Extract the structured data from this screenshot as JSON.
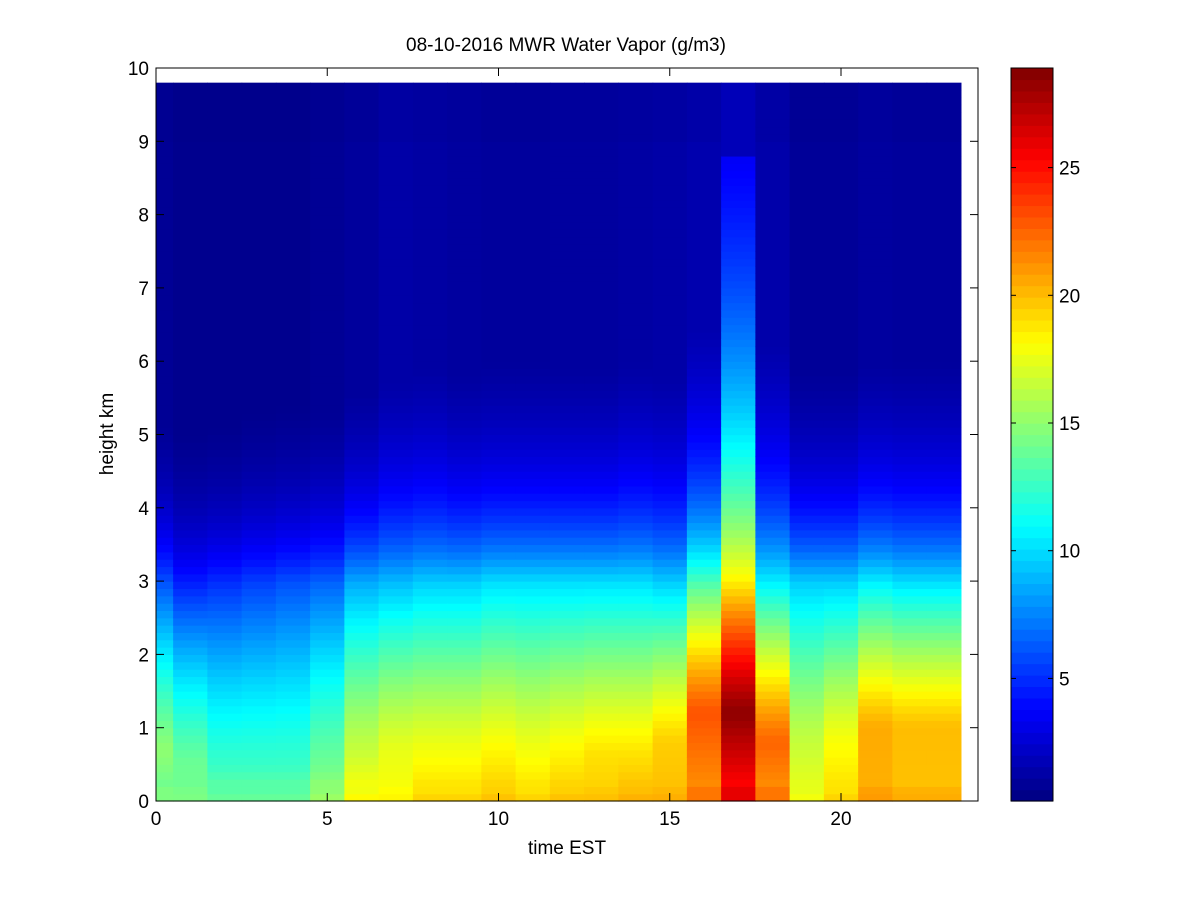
{
  "chart_data": {
    "type": "heatmap",
    "title": "08-10-2016 MWR Water Vapor (g/m3)",
    "xlabel": "time EST",
    "ylabel": "height km",
    "xlim": [
      0,
      24
    ],
    "ylim": [
      0,
      10
    ],
    "xticks": [
      0,
      5,
      10,
      15,
      20
    ],
    "yticks": [
      0,
      1,
      2,
      3,
      4,
      5,
      6,
      7,
      8,
      9,
      10
    ],
    "x_cell_edges": [
      0,
      0.5,
      1.5,
      2.5,
      3.5,
      4.5,
      5.5,
      6.5,
      7.5,
      8.5,
      9.5,
      10.5,
      11.5,
      12.5,
      13.5,
      14.5,
      15.5,
      16.5,
      17.5,
      18.5,
      19.5,
      20.5,
      21.5,
      22.5,
      23.5
    ],
    "y_top": 9.75,
    "y_cell_height": 0.1,
    "colormap": "jet",
    "colorbar": {
      "range": [
        0.2,
        28.9
      ],
      "ticks": [
        5,
        10,
        15,
        20,
        25
      ]
    },
    "columns": [
      {
        "time": 0.25,
        "surface": 14.5,
        "peak": 15.0,
        "peak_height": 0.7,
        "h3": 6.0,
        "scale_high": 1.05,
        "top": 0.8,
        "top_height": 9.0
      },
      {
        "time": 1,
        "surface": 14.5,
        "peak": 14.0,
        "peak_height": 0.5,
        "h3": 4.5,
        "scale_high": 1.0,
        "top": 0.6,
        "top_height": 9.0
      },
      {
        "time": 2,
        "surface": 14.0,
        "peak": 12.5,
        "peak_height": 0.5,
        "h3": 5.0,
        "scale_high": 1.0,
        "top": 0.6,
        "top_height": 9.0
      },
      {
        "time": 3,
        "surface": 14.0,
        "peak": 12.5,
        "peak_height": 0.5,
        "h3": 5.5,
        "scale_high": 1.05,
        "top": 0.6,
        "top_height": 9.0
      },
      {
        "time": 4,
        "surface": 14.0,
        "peak": 12.5,
        "peak_height": 0.5,
        "h3": 6.0,
        "scale_high": 1.05,
        "top": 0.6,
        "top_height": 9.0
      },
      {
        "time": 5,
        "surface": 15.5,
        "peak": 14.0,
        "peak_height": 0.5,
        "h3": 6.5,
        "scale_high": 1.1,
        "top": 0.8,
        "top_height": 9.0
      },
      {
        "time": 6,
        "surface": 18.5,
        "peak": 16.5,
        "peak_height": 0.7,
        "h3": 8.5,
        "scale_high": 1.2,
        "top": 1.0,
        "top_height": 9.0
      },
      {
        "time": 7,
        "surface": 18.5,
        "peak": 17.5,
        "peak_height": 0.7,
        "h3": 9.0,
        "scale_high": 1.4,
        "top": 1.3,
        "top_height": 9.0
      },
      {
        "time": 8,
        "surface": 19.5,
        "peak": 18.0,
        "peak_height": 0.6,
        "h3": 9.5,
        "scale_high": 1.4,
        "top": 1.2,
        "top_height": 9.0
      },
      {
        "time": 9,
        "surface": 19.5,
        "peak": 18.0,
        "peak_height": 0.6,
        "h3": 9.5,
        "scale_high": 1.3,
        "top": 1.1,
        "top_height": 9.0
      },
      {
        "time": 10,
        "surface": 20.0,
        "peak": 18.5,
        "peak_height": 0.6,
        "h3": 10.0,
        "scale_high": 1.3,
        "top": 1.0,
        "top_height": 9.0
      },
      {
        "time": 11,
        "surface": 19.5,
        "peak": 18.0,
        "peak_height": 0.6,
        "h3": 10.0,
        "scale_high": 1.3,
        "top": 1.0,
        "top_height": 9.0
      },
      {
        "time": 12,
        "surface": 20.0,
        "peak": 18.5,
        "peak_height": 0.6,
        "h3": 10.0,
        "scale_high": 1.3,
        "top": 1.1,
        "top_height": 9.0
      },
      {
        "time": 13,
        "surface": 20.0,
        "peak": 19.0,
        "peak_height": 0.6,
        "h3": 10.0,
        "scale_high": 1.3,
        "top": 1.1,
        "top_height": 9.0
      },
      {
        "time": 14,
        "surface": 20.5,
        "peak": 19.0,
        "peak_height": 0.6,
        "h3": 10.0,
        "scale_high": 1.4,
        "top": 1.2,
        "top_height": 9.0
      },
      {
        "time": 15,
        "surface": 20.5,
        "peak": 19.5,
        "peak_height": 0.8,
        "h3": 9.5,
        "scale_high": 1.4,
        "top": 1.3,
        "top_height": 9.0
      },
      {
        "time": 16,
        "surface": 22.0,
        "peak": 23.0,
        "peak_height": 1.2,
        "h3": 13.0,
        "scale_high": 1.6,
        "top": 1.5,
        "top_height": 9.0
      },
      {
        "time": 17,
        "surface": 26.0,
        "peak": 28.5,
        "peak_height": 1.2,
        "h3": 18.5,
        "scale_high": 3.5,
        "top": 2.0,
        "top_height": 8.85
      },
      {
        "time": 18,
        "surface": 22.0,
        "peak": 22.5,
        "peak_height": 0.8,
        "h3": 10.5,
        "scale_high": 1.6,
        "top": 1.4,
        "top_height": 9.0
      },
      {
        "time": 19,
        "surface": 18.0,
        "peak": 16.5,
        "peak_height": 0.8,
        "h3": 9.5,
        "scale_high": 1.2,
        "top": 0.9,
        "top_height": 9.0
      },
      {
        "time": 20,
        "surface": 19.5,
        "peak": 18.0,
        "peak_height": 0.8,
        "h3": 9.5,
        "scale_high": 1.2,
        "top": 0.9,
        "top_height": 9.0
      },
      {
        "time": 21,
        "surface": 21.0,
        "peak": 20.5,
        "peak_height": 1.0,
        "h3": 10.5,
        "scale_high": 1.3,
        "top": 1.1,
        "top_height": 9.0
      },
      {
        "time": 22,
        "surface": 20.5,
        "peak": 20.0,
        "peak_height": 1.0,
        "h3": 10.0,
        "scale_high": 1.3,
        "top": 1.0,
        "top_height": 9.0
      },
      {
        "time": 23,
        "surface": 20.5,
        "peak": 20.0,
        "peak_height": 1.0,
        "h3": 10.0,
        "scale_high": 1.3,
        "top": 1.0,
        "top_height": 9.0
      }
    ]
  }
}
